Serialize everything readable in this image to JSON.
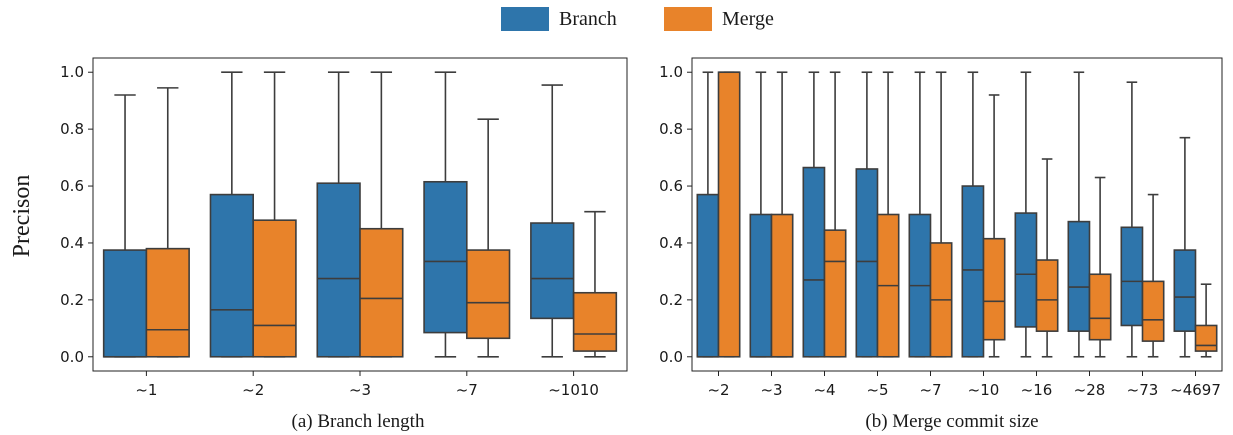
{
  "legend": [
    {
      "label": "Branch",
      "color": "#2e75ab"
    },
    {
      "label": "Merge",
      "color": "#e8832a"
    }
  ],
  "ylabel": "Precison",
  "chart_data": [
    {
      "type": "box",
      "title": "(a) Branch length",
      "ylabel": "Precison",
      "ylim": [
        -0.05,
        1.05
      ],
      "yticks": [
        "0.0",
        "0.2",
        "0.4",
        "0.6",
        "0.8",
        "1.0"
      ],
      "categories": [
        "~1",
        "~2",
        "~3",
        "~7",
        "~1010"
      ],
      "series": [
        {
          "name": "Branch",
          "color": "#2e75ab",
          "boxes": [
            {
              "whislo": 0,
              "q1": 0,
              "med": 0,
              "q3": 0.375,
              "whishi": 0.92
            },
            {
              "whislo": 0,
              "q1": 0,
              "med": 0.165,
              "q3": 0.57,
              "whishi": 1.0
            },
            {
              "whislo": 0,
              "q1": 0,
              "med": 0.275,
              "q3": 0.61,
              "whishi": 1.0
            },
            {
              "whislo": 0,
              "q1": 0.085,
              "med": 0.335,
              "q3": 0.615,
              "whishi": 1.0
            },
            {
              "whislo": 0,
              "q1": 0.135,
              "med": 0.275,
              "q3": 0.47,
              "whishi": 0.955
            }
          ]
        },
        {
          "name": "Merge",
          "color": "#e8832a",
          "boxes": [
            {
              "whislo": 0,
              "q1": 0,
              "med": 0.095,
              "q3": 0.38,
              "whishi": 0.945
            },
            {
              "whislo": 0,
              "q1": 0,
              "med": 0.11,
              "q3": 0.48,
              "whishi": 1.0
            },
            {
              "whislo": 0,
              "q1": 0,
              "med": 0.205,
              "q3": 0.45,
              "whishi": 1.0
            },
            {
              "whislo": 0,
              "q1": 0.065,
              "med": 0.19,
              "q3": 0.375,
              "whishi": 0.835
            },
            {
              "whislo": 0,
              "q1": 0.02,
              "med": 0.08,
              "q3": 0.225,
              "whishi": 0.51
            }
          ]
        }
      ]
    },
    {
      "type": "box",
      "title": "(b) Merge commit size",
      "ylabel": "",
      "ylim": [
        -0.05,
        1.05
      ],
      "yticks": [
        "0.0",
        "0.2",
        "0.4",
        "0.6",
        "0.8",
        "1.0"
      ],
      "categories": [
        "~2",
        "~3",
        "~4",
        "~5",
        "~7",
        "~10",
        "~16",
        "~28",
        "~73",
        "~4697"
      ],
      "series": [
        {
          "name": "Branch",
          "color": "#2e75ab",
          "boxes": [
            {
              "whislo": 0,
              "q1": 0,
              "med": 0,
              "q3": 0.57,
              "whishi": 1.0
            },
            {
              "whislo": 0,
              "q1": 0,
              "med": 0,
              "q3": 0.5,
              "whishi": 1.0
            },
            {
              "whislo": 0,
              "q1": 0,
              "med": 0.27,
              "q3": 0.665,
              "whishi": 1.0
            },
            {
              "whislo": 0,
              "q1": 0,
              "med": 0.335,
              "q3": 0.66,
              "whishi": 1.0
            },
            {
              "whislo": 0,
              "q1": 0,
              "med": 0.25,
              "q3": 0.5,
              "whishi": 1.0
            },
            {
              "whislo": 0,
              "q1": 0,
              "med": 0.305,
              "q3": 0.6,
              "whishi": 1.0
            },
            {
              "whislo": 0,
              "q1": 0.105,
              "med": 0.29,
              "q3": 0.505,
              "whishi": 1.0
            },
            {
              "whislo": 0,
              "q1": 0.09,
              "med": 0.245,
              "q3": 0.475,
              "whishi": 1.0
            },
            {
              "whislo": 0,
              "q1": 0.11,
              "med": 0.265,
              "q3": 0.455,
              "whishi": 0.965
            },
            {
              "whislo": 0,
              "q1": 0.09,
              "med": 0.21,
              "q3": 0.375,
              "whishi": 0.77
            }
          ]
        },
        {
          "name": "Merge",
          "color": "#e8832a",
          "boxes": [
            {
              "whislo": 0,
              "q1": 0,
              "med": 1.0,
              "q3": 1.0,
              "whishi": 1.0
            },
            {
              "whislo": 0,
              "q1": 0,
              "med": 0,
              "q3": 0.5,
              "whishi": 1.0
            },
            {
              "whislo": 0,
              "q1": 0,
              "med": 0.335,
              "q3": 0.445,
              "whishi": 1.0
            },
            {
              "whislo": 0,
              "q1": 0,
              "med": 0.25,
              "q3": 0.5,
              "whishi": 1.0
            },
            {
              "whislo": 0,
              "q1": 0,
              "med": 0.2,
              "q3": 0.4,
              "whishi": 1.0
            },
            {
              "whislo": 0,
              "q1": 0.06,
              "med": 0.195,
              "q3": 0.415,
              "whishi": 0.92
            },
            {
              "whislo": 0,
              "q1": 0.09,
              "med": 0.2,
              "q3": 0.34,
              "whishi": 0.695
            },
            {
              "whislo": 0,
              "q1": 0.06,
              "med": 0.135,
              "q3": 0.29,
              "whishi": 0.63
            },
            {
              "whislo": 0,
              "q1": 0.055,
              "med": 0.13,
              "q3": 0.265,
              "whishi": 0.57
            },
            {
              "whislo": 0,
              "q1": 0.02,
              "med": 0.04,
              "q3": 0.11,
              "whishi": 0.255
            }
          ]
        }
      ]
    }
  ]
}
